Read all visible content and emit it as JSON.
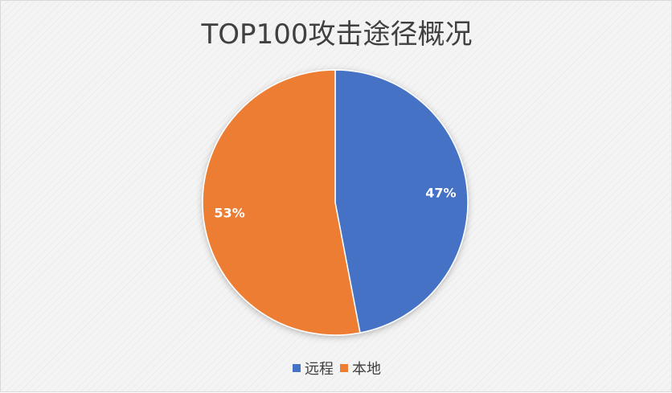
{
  "chart_data": {
    "type": "pie",
    "title": "TOP100攻击途径概况",
    "categories": [
      "远程",
      "本地"
    ],
    "values": [
      47,
      53
    ],
    "data_labels": [
      "47%",
      "53%"
    ],
    "colors": [
      "#4472c4",
      "#ed7d31"
    ],
    "legend_position": "bottom",
    "start_angle": "12 o'clock, clockwise"
  }
}
